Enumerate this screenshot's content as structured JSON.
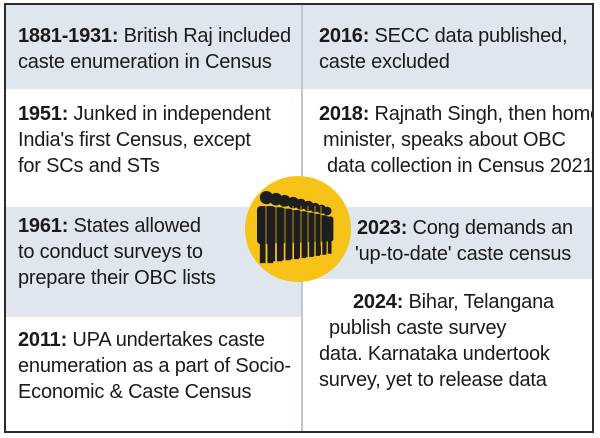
{
  "left": [
    {
      "year": "1881-1931:",
      "lines": [
        " British Raj included",
        "caste enumeration in Census"
      ]
    },
    {
      "year": "1951:",
      "lines": [
        " Junked in independent",
        "India's first Census, except",
        "for SCs and STs"
      ]
    },
    {
      "year": "1961:",
      "lines": [
        " States allowed",
        "to conduct surveys to",
        "prepare their OBC lists"
      ]
    },
    {
      "year": "2011:",
      "lines": [
        " UPA undertakes caste",
        "enumeration as a part of Socio-",
        "Economic & Caste Census"
      ]
    }
  ],
  "right": [
    {
      "year": "2016:",
      "lines": [
        " SECC data published,",
        "caste excluded"
      ]
    },
    {
      "year": "2018:",
      "lines": [
        " Rajnath Singh, then home",
        "minister, speaks about OBC",
        "data collection in Census 2021"
      ]
    },
    {
      "year": "2023:",
      "lines": [
        " Cong demands an",
        "'up-to-date' caste census"
      ]
    },
    {
      "year": "2024:",
      "lines": [
        " Bihar, Telangana",
        "publish caste survey",
        "data. Karnataka undertook",
        "survey, yet to release data"
      ]
    }
  ],
  "icon": {
    "name": "people-row-icon",
    "color": "#f7c318"
  }
}
